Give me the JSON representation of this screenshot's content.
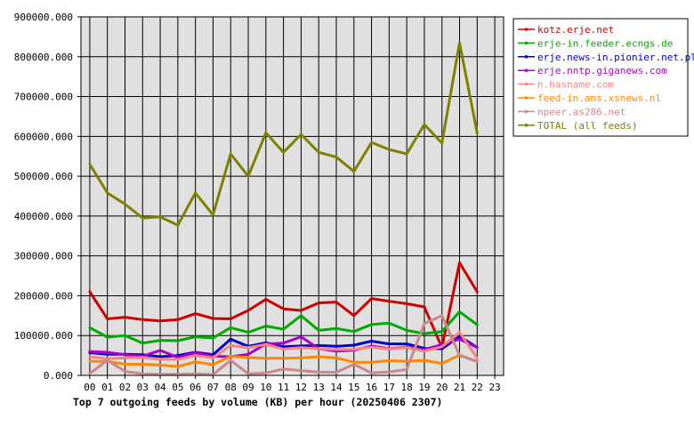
{
  "chart_data": {
    "type": "line",
    "title": "Top 7 outgoing feeds by volume (KB) per hour (20250406 2307)",
    "x_ticks": [
      "00",
      "01",
      "02",
      "03",
      "04",
      "05",
      "06",
      "07",
      "08",
      "09",
      "10",
      "11",
      "12",
      "13",
      "14",
      "15",
      "16",
      "17",
      "18",
      "19",
      "20",
      "21",
      "22",
      "23"
    ],
    "y_ticks": [
      "0.000",
      "100000.000",
      "200000.000",
      "300000.000",
      "400000.000",
      "500000.000",
      "600000.000",
      "700000.000",
      "800000.000",
      "900000.000"
    ],
    "ylim": [
      0,
      900000
    ],
    "grid": true,
    "legend_position": "right",
    "series": [
      {
        "name": "kotz.erje.net",
        "color": "#cc0000",
        "values": [
          210000,
          142000,
          146000,
          140000,
          137000,
          140000,
          155000,
          143000,
          142000,
          163000,
          191000,
          167000,
          163000,
          182000,
          184000,
          150000,
          193000,
          186000,
          180000,
          172000,
          70000,
          283000,
          210000
        ]
      },
      {
        "name": "erje-in.feeder.ecngs.de",
        "color": "#00aa00",
        "values": [
          120000,
          96000,
          100000,
          81000,
          88000,
          87000,
          97000,
          94000,
          120000,
          108000,
          124000,
          116000,
          150000,
          113000,
          118000,
          110000,
          128000,
          131000,
          113000,
          105000,
          110000,
          160000,
          127000
        ]
      },
      {
        "name": "erje.news-in.pionier.net.pl",
        "color": "#0000cc",
        "values": [
          57000,
          53000,
          53000,
          52000,
          47000,
          50000,
          58000,
          52000,
          91000,
          73000,
          82000,
          72000,
          74000,
          75000,
          73000,
          76000,
          86000,
          79000,
          79000,
          68000,
          67000,
          98000,
          70000
        ]
      },
      {
        "name": "erje.nntp.giganews.com",
        "color": "#aa00cc",
        "values": [
          60000,
          58000,
          52000,
          48000,
          63000,
          45000,
          57000,
          48000,
          47000,
          53000,
          79000,
          81000,
          97000,
          67000,
          61000,
          63000,
          74000,
          67000,
          71000,
          65000,
          77000,
          91000,
          70000
        ]
      },
      {
        "name": "n.hasname.com",
        "color": "#ff8080",
        "values": [
          47000,
          42000,
          44000,
          45000,
          41000,
          40000,
          50000,
          44000,
          75000,
          70000,
          78000,
          66000,
          70000,
          67000,
          65000,
          65000,
          71000,
          66000,
          70000,
          61000,
          72000,
          108000,
          43000
        ]
      },
      {
        "name": "feed-in.ams.xsnews.nl",
        "color": "#ff8800",
        "values": [
          35000,
          35000,
          28000,
          28000,
          26000,
          22000,
          34000,
          27000,
          48000,
          45000,
          43000,
          43000,
          44000,
          47000,
          44000,
          33000,
          33000,
          37000,
          35000,
          38000,
          30000,
          51000,
          35000
        ]
      },
      {
        "name": "npeer.as286.net",
        "color": "#cc8888",
        "values": [
          5000,
          38000,
          10000,
          4000,
          3000,
          3000,
          4000,
          2000,
          38000,
          4000,
          6000,
          16000,
          12000,
          8000,
          8000,
          28000,
          6000,
          9000,
          15000,
          130000,
          150000,
          50000,
          35000
        ]
      },
      {
        "name": "TOTAL (all feeds)",
        "color": "#808000",
        "values": [
          530000,
          458000,
          430000,
          395000,
          398000,
          377000,
          458000,
          403000,
          556000,
          500000,
          609000,
          560000,
          605000,
          560000,
          548000,
          512000,
          585000,
          567000,
          556000,
          630000,
          583000,
          835000,
          608000
        ]
      }
    ]
  }
}
